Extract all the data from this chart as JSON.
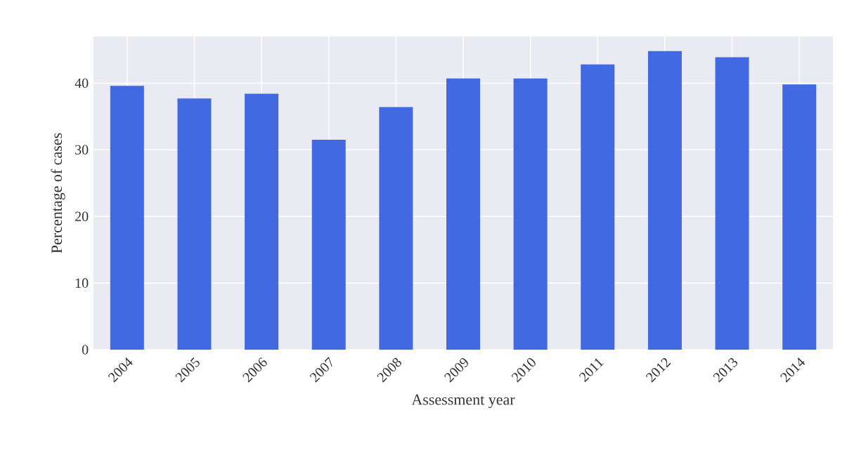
{
  "chart_data": {
    "type": "bar",
    "xlabel": "Assessment year",
    "ylabel": "Percentage of cases",
    "categories": [
      "2004",
      "2005",
      "2006",
      "2007",
      "2008",
      "2009",
      "2010",
      "2011",
      "2012",
      "2013",
      "2014"
    ],
    "values": [
      39.6,
      37.7,
      38.4,
      31.5,
      36.4,
      40.7,
      40.7,
      42.8,
      44.8,
      43.9,
      39.8
    ],
    "color": "#4169e1",
    "ylim": [
      0,
      47
    ],
    "yticks": [
      0,
      10,
      20,
      30,
      40
    ],
    "grid": true
  }
}
